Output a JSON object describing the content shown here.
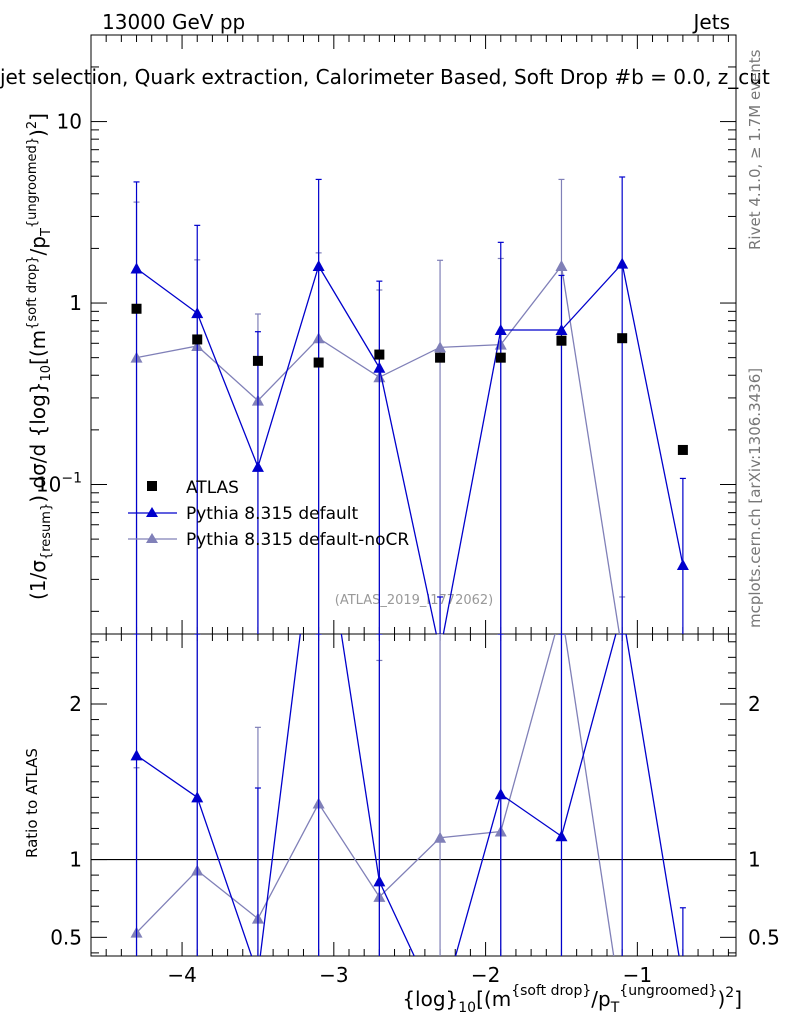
{
  "header": {
    "energy": "13000 GeV pp",
    "category": "Jets",
    "title": "jet selection, Quark extraction, Calorimeter Based, Soft Drop #b = 0.0, z_cut",
    "side_label": "Rivet 4.1.0, ≥ 1.7M events",
    "credit": "mcplots.cern.ch [arXiv:1306.3436]",
    "analysis_id": "(ATLAS_2019_I1772062)"
  },
  "colors": {
    "atlas": "#000000",
    "pythia_default": "#0000cc",
    "pythia_nocr": "#8080b8"
  },
  "chart_data": [
    {
      "type": "line",
      "panel": "main",
      "ylabel": "(1/σ_{resum}) dσ/d {log}_10[(m^{soft drop}/p_T^{ungroomed})^2]",
      "yscale": "log",
      "xlim": [
        -4.6,
        -0.35
      ],
      "ylim": [
        0.015,
        30
      ],
      "ytick_labels": [
        "10^{-1}",
        "1",
        "10"
      ],
      "legend": {
        "position": "lower-left",
        "entries": [
          "ATLAS",
          "Pythia 8.315 default",
          "Pythia 8.315 default-noCR"
        ]
      },
      "series": [
        {
          "name": "ATLAS",
          "style": "markers",
          "x": [
            -4.3,
            -3.9,
            -3.5,
            -3.1,
            -2.7,
            -2.3,
            -1.9,
            -1.5,
            -1.1,
            -0.7
          ],
          "values": [
            0.93,
            0.63,
            0.48,
            0.47,
            0.52,
            0.5,
            0.5,
            0.62,
            0.64,
            0.155
          ]
        },
        {
          "name": "Pythia 8.315 default",
          "style": "line-triangle",
          "x": [
            -4.3,
            -3.9,
            -3.5,
            -3.1,
            -2.7,
            -2.3,
            -1.9,
            -1.5,
            -1.1,
            -0.7
          ],
          "values": [
            1.55,
            0.88,
            0.125,
            1.6,
            0.44,
            0.012,
            0.71,
            0.71,
            1.65,
            0.036
          ],
          "err_up": [
            3.1,
            1.8,
            0.57,
            3.2,
            0.88,
            0.012,
            1.45,
            0.71,
            3.3,
            0.072
          ],
          "err_down": [
            0.001,
            0.001,
            0.001,
            0.001,
            0.001,
            0.001,
            0.001,
            0.001,
            0.001,
            0.001
          ]
        },
        {
          "name": "Pythia 8.315 default-noCR",
          "style": "line-triangle",
          "x": [
            -4.3,
            -3.9,
            -3.5,
            -3.1,
            -2.7,
            -2.3,
            -1.9,
            -1.5,
            -1.1
          ],
          "values": [
            0.5,
            0.58,
            0.29,
            0.64,
            0.39,
            0.57,
            0.59,
            1.6,
            0.012
          ],
          "err_up": [
            3.1,
            1.15,
            0.58,
            1.25,
            0.79,
            1.15,
            1.17,
            3.2,
            0.012
          ],
          "err_down": [
            0.001,
            0.001,
            0.001,
            0.001,
            0.001,
            0.001,
            0.001,
            0.001,
            0.001
          ]
        }
      ]
    },
    {
      "type": "line",
      "panel": "ratio",
      "ylabel": "Ratio to ATLAS",
      "xlabel": "{log}_10[(m^{soft drop}/p_T^{ungroomed})^2]",
      "xlim": [
        -4.6,
        -0.35
      ],
      "ylim": [
        0.38,
        2.45
      ],
      "xticks": [
        -4,
        -3,
        -2,
        -1
      ],
      "xtick_labels": [
        "−4",
        "−3",
        "−2",
        "−1"
      ],
      "yticks": [
        0.5,
        1,
        2
      ],
      "ytick_labels": [
        "0.5",
        "1",
        "2"
      ],
      "reference": 1,
      "series": [
        {
          "name": "Pythia 8.315 default",
          "x": [
            -4.3,
            -3.9,
            -3.5,
            -3.1,
            -2.7,
            -2.3,
            -1.9,
            -1.5,
            -1.1,
            -0.7
          ],
          "values": [
            1.67,
            1.4,
            0.26,
            3.4,
            0.86,
            0.024,
            1.42,
            1.15,
            2.6,
            0.23
          ],
          "err_up": [
            3.3,
            2.85,
            1.2,
            6.8,
            1.7,
            0.05,
            2.9,
            2.3,
            5.2,
            0.46
          ],
          "err_down": [
            0.01,
            0.01,
            0.01,
            0.01,
            0.01,
            0.01,
            0.01,
            0.01,
            0.01,
            0.01
          ]
        },
        {
          "name": "Pythia 8.315 default-noCR",
          "x": [
            -4.3,
            -3.9,
            -3.5,
            -3.1,
            -2.7,
            -2.3,
            -1.9,
            -1.5,
            -1.1
          ],
          "values": [
            0.53,
            0.93,
            0.62,
            1.36,
            0.76,
            1.14,
            1.18,
            2.6,
            0.02
          ],
          "err_up": [
            1.06,
            1.85,
            1.23,
            2.72,
            1.52,
            2.3,
            2.35,
            5.2,
            0.04
          ],
          "err_down": [
            0.01,
            0.01,
            0.01,
            0.01,
            0.01,
            0.01,
            0.01,
            0.01,
            0.01
          ]
        }
      ]
    }
  ]
}
